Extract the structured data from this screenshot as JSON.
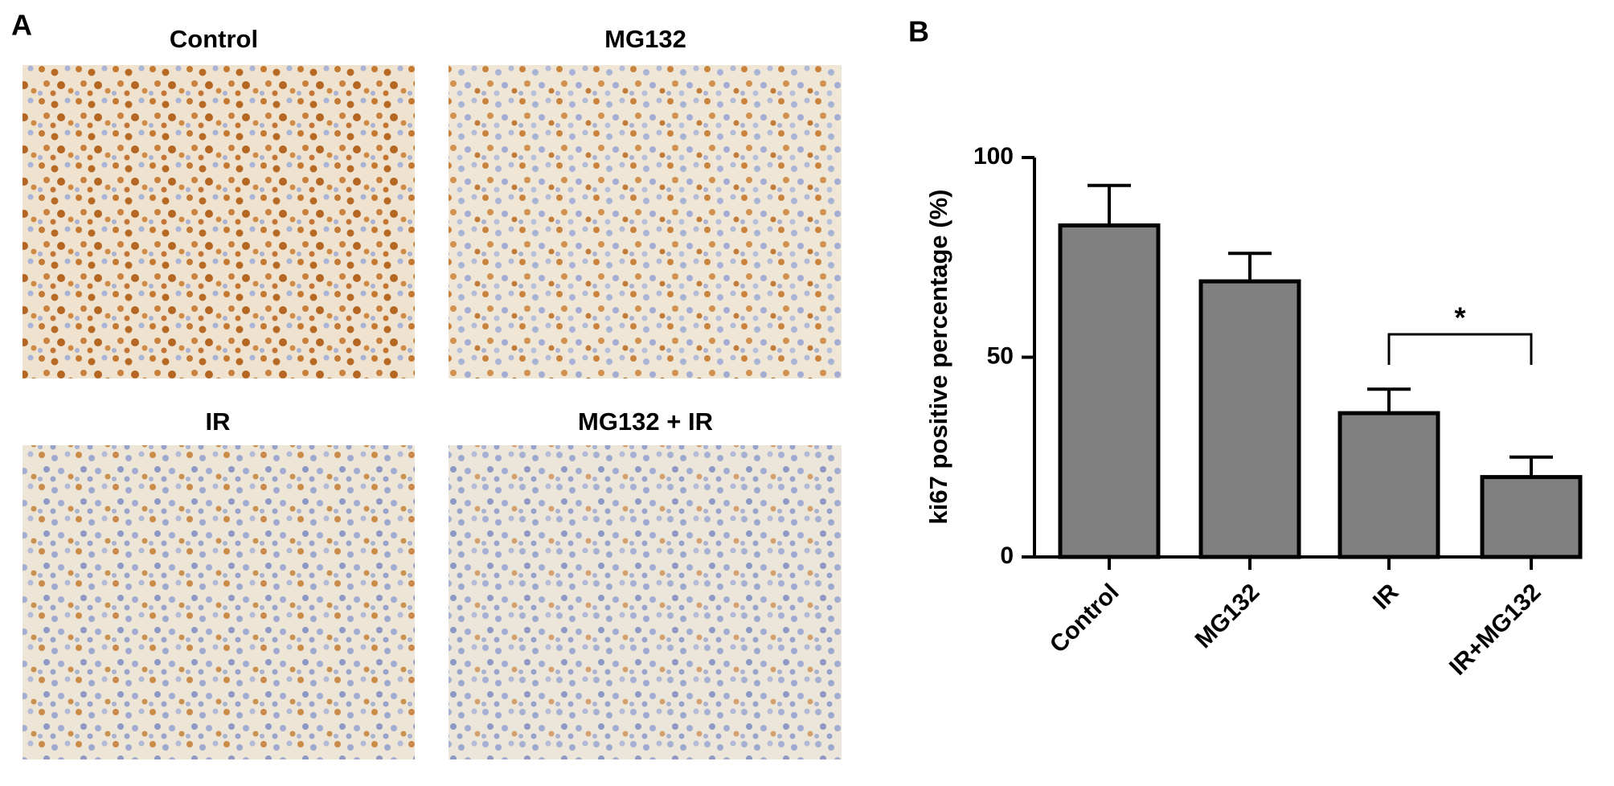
{
  "panel_a": {
    "label": "A",
    "images": [
      {
        "title": "Control"
      },
      {
        "title": "MG132"
      },
      {
        "title": "IR"
      },
      {
        "title": "MG132 + IR"
      }
    ]
  },
  "chart_data": {
    "type": "bar",
    "panel_label": "B",
    "y_label": "ki67 positive percentage (%)",
    "categories": [
      "Control",
      "MG132",
      "IR",
      "IR+MG132"
    ],
    "values": [
      83,
      69,
      36,
      20
    ],
    "errors": [
      10,
      7,
      6,
      5
    ],
    "color": "#808080",
    "ylim": [
      0,
      100
    ],
    "yticks": [
      0,
      50,
      100
    ],
    "annotation": "*"
  }
}
